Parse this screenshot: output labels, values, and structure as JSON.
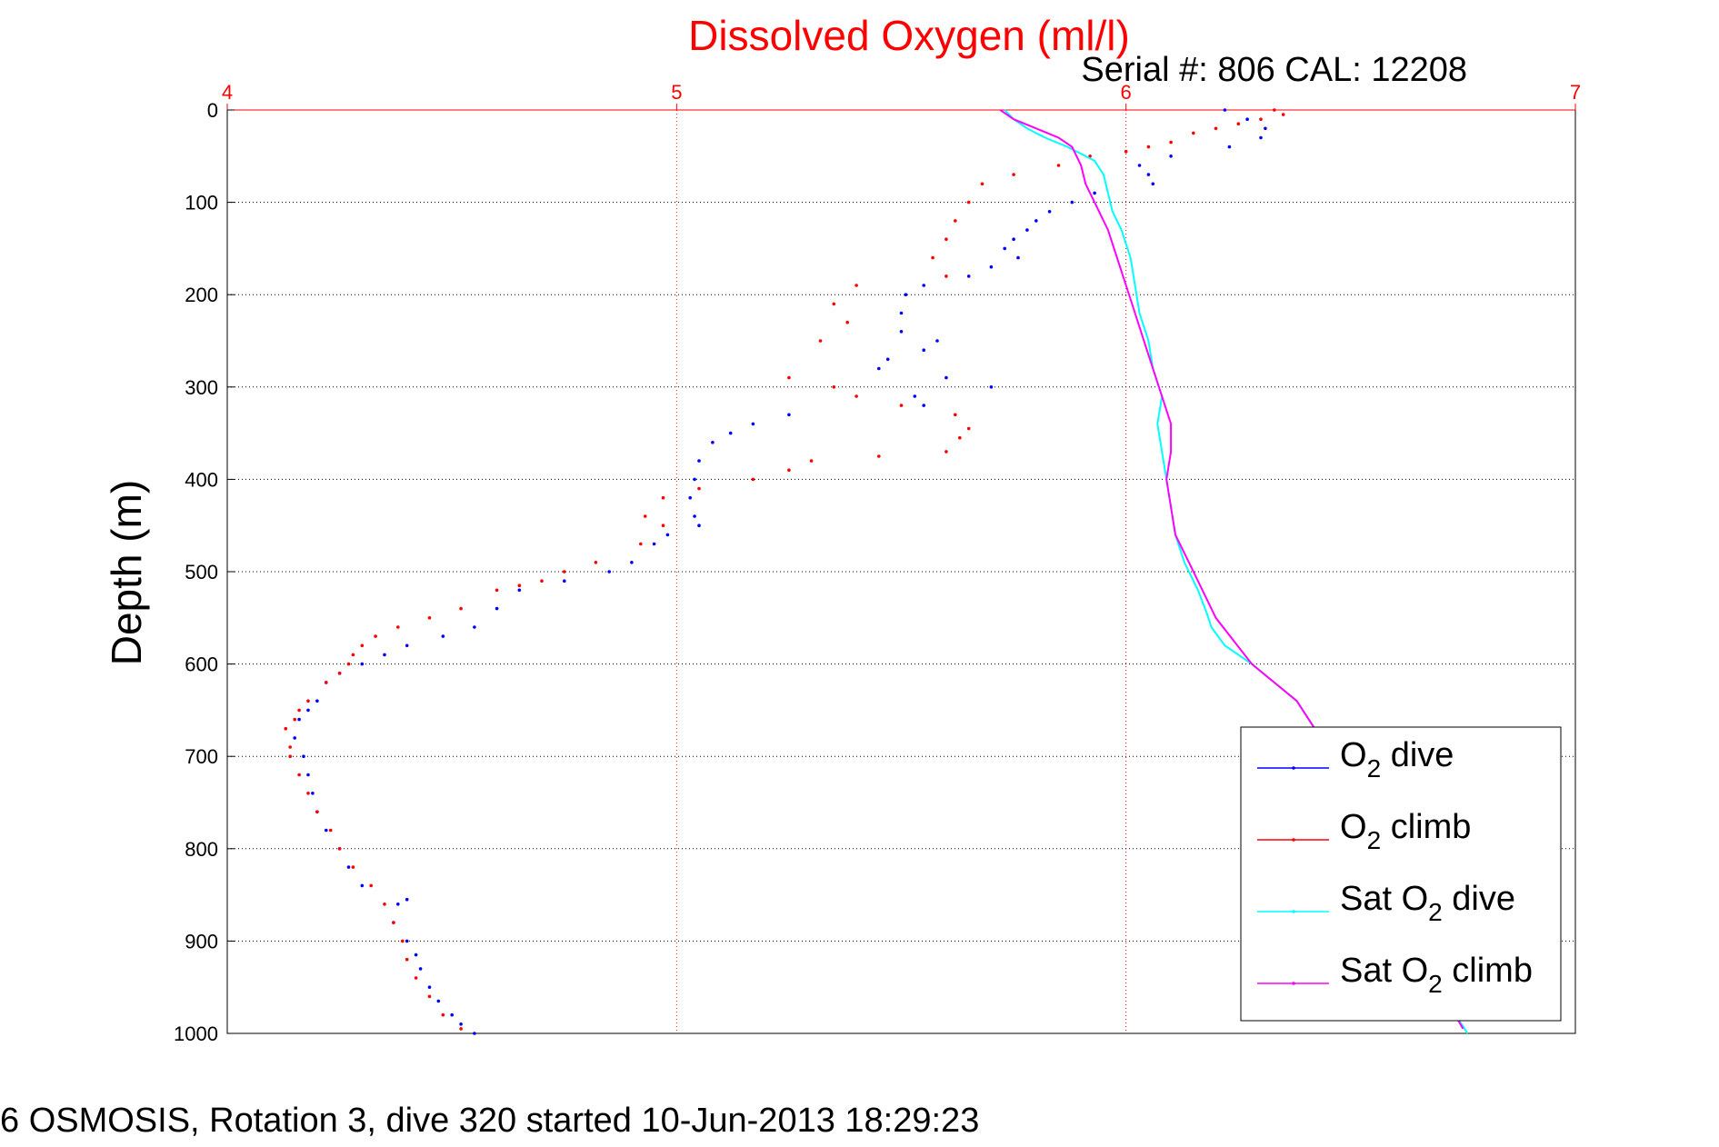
{
  "chart_data": {
    "type": "scatter",
    "title": "Dissolved Oxygen (ml/l)",
    "subtitle": "Serial #: 806  CAL: 12208",
    "ylabel": "Depth (m)",
    "footer": "6 OSMOSIS, Rotation 3, dive 320 started 10-Jun-2013 18:29:23",
    "xlim": [
      4,
      7
    ],
    "ylim": [
      1000,
      0
    ],
    "x_ticks": [
      "4",
      "5",
      "6",
      "7"
    ],
    "y_ticks": [
      "0",
      "100",
      "200",
      "300",
      "400",
      "500",
      "600",
      "700",
      "800",
      "900",
      "1000"
    ],
    "x_tick_values": [
      4,
      5,
      6,
      7
    ],
    "y_tick_values": [
      0,
      100,
      200,
      300,
      400,
      500,
      600,
      700,
      800,
      900,
      1000
    ],
    "x_axis_position": "top",
    "grid": true,
    "legend_position": "bottom-right",
    "colors": {
      "title": "#ff0000",
      "x_axis": "#ff0000",
      "o2_dive": "#0000ff",
      "o2_climb": "#ff0000",
      "sat_dive": "#00ffff",
      "sat_climb": "#ff00ff"
    },
    "legend": [
      {
        "prefix": "O",
        "sub": "2",
        "suffix": " dive",
        "color": "#0000ff"
      },
      {
        "prefix": "O",
        "sub": "2",
        "suffix": " climb",
        "color": "#ff0000"
      },
      {
        "prefix": "Sat O",
        "sub": "2",
        "suffix": " dive",
        "color": "#00ffff"
      },
      {
        "prefix": "Sat O",
        "sub": "2",
        "suffix": " climb",
        "color": "#ff00ff"
      }
    ],
    "series": [
      {
        "name": "O2 dive",
        "style": "points",
        "color": "#0000ff",
        "points": [
          [
            6.22,
            0
          ],
          [
            6.27,
            10
          ],
          [
            6.31,
            20
          ],
          [
            6.3,
            30
          ],
          [
            6.23,
            40
          ],
          [
            6.1,
            50
          ],
          [
            6.03,
            60
          ],
          [
            6.05,
            70
          ],
          [
            6.06,
            80
          ],
          [
            5.93,
            90
          ],
          [
            5.88,
            100
          ],
          [
            5.83,
            110
          ],
          [
            5.8,
            120
          ],
          [
            5.78,
            130
          ],
          [
            5.75,
            140
          ],
          [
            5.73,
            150
          ],
          [
            5.76,
            160
          ],
          [
            5.7,
            170
          ],
          [
            5.65,
            180
          ],
          [
            5.55,
            190
          ],
          [
            5.51,
            200
          ],
          [
            5.5,
            220
          ],
          [
            5.5,
            240
          ],
          [
            5.58,
            250
          ],
          [
            5.55,
            260
          ],
          [
            5.47,
            270
          ],
          [
            5.45,
            280
          ],
          [
            5.6,
            290
          ],
          [
            5.7,
            300
          ],
          [
            5.53,
            310
          ],
          [
            5.55,
            320
          ],
          [
            5.25,
            330
          ],
          [
            5.17,
            340
          ],
          [
            5.12,
            350
          ],
          [
            5.08,
            360
          ],
          [
            5.05,
            380
          ],
          [
            5.04,
            400
          ],
          [
            5.03,
            420
          ],
          [
            5.04,
            440
          ],
          [
            5.05,
            450
          ],
          [
            4.98,
            460
          ],
          [
            4.95,
            470
          ],
          [
            4.9,
            490
          ],
          [
            4.85,
            500
          ],
          [
            4.75,
            510
          ],
          [
            4.65,
            520
          ],
          [
            4.6,
            540
          ],
          [
            4.55,
            560
          ],
          [
            4.48,
            570
          ],
          [
            4.4,
            580
          ],
          [
            4.35,
            590
          ],
          [
            4.3,
            600
          ],
          [
            4.25,
            610
          ],
          [
            4.22,
            620
          ],
          [
            4.2,
            640
          ],
          [
            4.18,
            650
          ],
          [
            4.16,
            660
          ],
          [
            4.15,
            680
          ],
          [
            4.17,
            700
          ],
          [
            4.18,
            720
          ],
          [
            4.19,
            740
          ],
          [
            4.2,
            760
          ],
          [
            4.22,
            780
          ],
          [
            4.25,
            800
          ],
          [
            4.27,
            820
          ],
          [
            4.3,
            840
          ],
          [
            4.4,
            855
          ],
          [
            4.38,
            860
          ],
          [
            4.37,
            880
          ],
          [
            4.4,
            900
          ],
          [
            4.42,
            915
          ],
          [
            4.43,
            930
          ],
          [
            4.45,
            950
          ],
          [
            4.47,
            965
          ],
          [
            4.5,
            980
          ],
          [
            4.52,
            990
          ],
          [
            4.55,
            1000
          ]
        ]
      },
      {
        "name": "O2 climb",
        "style": "points",
        "color": "#ff0000",
        "points": [
          [
            6.33,
            0
          ],
          [
            6.35,
            5
          ],
          [
            6.3,
            10
          ],
          [
            6.25,
            15
          ],
          [
            6.2,
            20
          ],
          [
            6.15,
            25
          ],
          [
            6.1,
            35
          ],
          [
            6.05,
            40
          ],
          [
            6.0,
            45
          ],
          [
            5.92,
            50
          ],
          [
            5.85,
            60
          ],
          [
            5.75,
            70
          ],
          [
            5.68,
            80
          ],
          [
            5.65,
            100
          ],
          [
            5.62,
            120
          ],
          [
            5.6,
            140
          ],
          [
            5.57,
            160
          ],
          [
            5.6,
            180
          ],
          [
            5.4,
            190
          ],
          [
            5.35,
            210
          ],
          [
            5.38,
            230
          ],
          [
            5.32,
            250
          ],
          [
            5.25,
            290
          ],
          [
            5.35,
            300
          ],
          [
            5.4,
            310
          ],
          [
            5.5,
            320
          ],
          [
            5.62,
            330
          ],
          [
            5.65,
            345
          ],
          [
            5.63,
            355
          ],
          [
            5.6,
            370
          ],
          [
            5.45,
            375
          ],
          [
            5.3,
            380
          ],
          [
            5.25,
            390
          ],
          [
            5.17,
            400
          ],
          [
            5.05,
            410
          ],
          [
            4.97,
            420
          ],
          [
            4.93,
            440
          ],
          [
            4.97,
            450
          ],
          [
            4.92,
            470
          ],
          [
            4.82,
            490
          ],
          [
            4.75,
            500
          ],
          [
            4.7,
            510
          ],
          [
            4.65,
            515
          ],
          [
            4.6,
            520
          ],
          [
            4.52,
            540
          ],
          [
            4.45,
            550
          ],
          [
            4.38,
            560
          ],
          [
            4.33,
            570
          ],
          [
            4.3,
            580
          ],
          [
            4.28,
            590
          ],
          [
            4.27,
            600
          ],
          [
            4.25,
            610
          ],
          [
            4.22,
            620
          ],
          [
            4.18,
            640
          ],
          [
            4.16,
            650
          ],
          [
            4.15,
            660
          ],
          [
            4.13,
            670
          ],
          [
            4.14,
            690
          ],
          [
            4.14,
            700
          ],
          [
            4.16,
            720
          ],
          [
            4.18,
            740
          ],
          [
            4.2,
            760
          ],
          [
            4.23,
            780
          ],
          [
            4.25,
            800
          ],
          [
            4.28,
            820
          ],
          [
            4.32,
            840
          ],
          [
            4.35,
            860
          ],
          [
            4.37,
            880
          ],
          [
            4.39,
            900
          ],
          [
            4.4,
            920
          ],
          [
            4.42,
            940
          ],
          [
            4.45,
            960
          ],
          [
            4.48,
            980
          ],
          [
            4.52,
            995
          ]
        ]
      },
      {
        "name": "Sat O2 dive",
        "style": "line",
        "color": "#00ffff",
        "points": [
          [
            5.73,
            0
          ],
          [
            5.75,
            10
          ],
          [
            5.78,
            20
          ],
          [
            5.82,
            30
          ],
          [
            5.87,
            40
          ],
          [
            5.93,
            55
          ],
          [
            5.95,
            70
          ],
          [
            5.96,
            90
          ],
          [
            5.97,
            110
          ],
          [
            5.99,
            130
          ],
          [
            6.01,
            160
          ],
          [
            6.02,
            190
          ],
          [
            6.03,
            220
          ],
          [
            6.05,
            250
          ],
          [
            6.06,
            280
          ],
          [
            6.08,
            310
          ],
          [
            6.07,
            340
          ],
          [
            6.08,
            370
          ],
          [
            6.09,
            400
          ],
          [
            6.1,
            430
          ],
          [
            6.11,
            460
          ],
          [
            6.13,
            490
          ],
          [
            6.16,
            520
          ],
          [
            6.18,
            545
          ],
          [
            6.19,
            560
          ],
          [
            6.22,
            580
          ],
          [
            6.28,
            600
          ],
          [
            6.33,
            620
          ],
          [
            6.38,
            640
          ],
          [
            6.42,
            670
          ],
          [
            6.46,
            700
          ],
          [
            6.5,
            740
          ],
          [
            6.54,
            780
          ],
          [
            6.57,
            820
          ],
          [
            6.6,
            860
          ],
          [
            6.64,
            900
          ],
          [
            6.68,
            940
          ],
          [
            6.72,
            970
          ],
          [
            6.76,
            1000
          ]
        ]
      },
      {
        "name": "Sat O2 climb",
        "style": "line",
        "color": "#ff00ff",
        "points": [
          [
            5.72,
            0
          ],
          [
            5.75,
            10
          ],
          [
            5.8,
            20
          ],
          [
            5.85,
            30
          ],
          [
            5.88,
            40
          ],
          [
            5.9,
            60
          ],
          [
            5.91,
            80
          ],
          [
            5.93,
            100
          ],
          [
            5.96,
            130
          ],
          [
            5.98,
            160
          ],
          [
            6.0,
            190
          ],
          [
            6.02,
            220
          ],
          [
            6.04,
            250
          ],
          [
            6.06,
            280
          ],
          [
            6.08,
            310
          ],
          [
            6.1,
            340
          ],
          [
            6.1,
            370
          ],
          [
            6.09,
            400
          ],
          [
            6.1,
            430
          ],
          [
            6.11,
            460
          ],
          [
            6.14,
            490
          ],
          [
            6.17,
            520
          ],
          [
            6.2,
            550
          ],
          [
            6.24,
            575
          ],
          [
            6.28,
            600
          ],
          [
            6.33,
            620
          ],
          [
            6.38,
            640
          ],
          [
            6.42,
            670
          ],
          [
            6.46,
            700
          ],
          [
            6.5,
            740
          ],
          [
            6.54,
            780
          ],
          [
            6.57,
            820
          ],
          [
            6.6,
            860
          ],
          [
            6.64,
            900
          ],
          [
            6.68,
            940
          ],
          [
            6.72,
            970
          ],
          [
            6.75,
            995
          ]
        ]
      }
    ]
  }
}
